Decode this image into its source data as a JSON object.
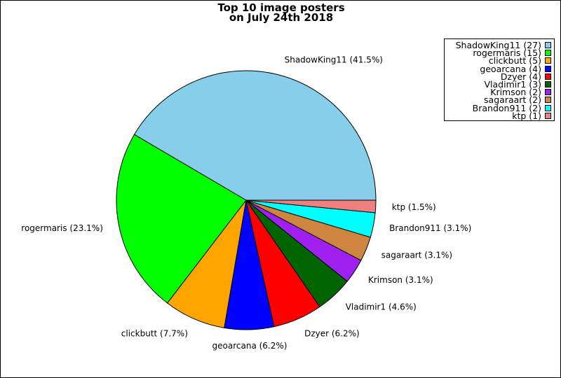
{
  "chart_data": {
    "type": "pie",
    "title_lines": [
      "Top 10 image posters",
      "on July 24th 2018"
    ],
    "slices": [
      {
        "label": "ShadowKing11",
        "value": 27,
        "percent_label": "ShadowKing11 (41.5%)",
        "legend_label": "ShadowKing11 (27)",
        "color": "#87CEEB"
      },
      {
        "label": "rogermaris",
        "value": 15,
        "percent_label": "rogermaris (23.1%)",
        "legend_label": "rogermaris (15)",
        "color": "#00FF00"
      },
      {
        "label": "clickbutt",
        "value": 5,
        "percent_label": "clickbutt (7.7%)",
        "legend_label": "clickbutt (5)",
        "color": "#FFA500"
      },
      {
        "label": "geoarcana",
        "value": 4,
        "percent_label": "geoarcana (6.2%)",
        "legend_label": "geoarcana (4)",
        "color": "#0000FF"
      },
      {
        "label": "Dzyer",
        "value": 4,
        "percent_label": "Dzyer (6.2%)",
        "legend_label": "Dzyer (4)",
        "color": "#FF0000"
      },
      {
        "label": "Vladimir1",
        "value": 3,
        "percent_label": "Vladimir1 (4.6%)",
        "legend_label": "Vladimir1 (3)",
        "color": "#006400"
      },
      {
        "label": "Krimson",
        "value": 2,
        "percent_label": "Krimson (3.1%)",
        "legend_label": "Krimson (2)",
        "color": "#A020F0"
      },
      {
        "label": "sagaraart",
        "value": 2,
        "percent_label": "sagaraart (3.1%)",
        "legend_label": "sagaraart (2)",
        "color": "#CD853F"
      },
      {
        "label": "Brandon911",
        "value": 2,
        "percent_label": "Brandon911 (3.1%)",
        "legend_label": "Brandon911 (2)",
        "color": "#00FFFF"
      },
      {
        "label": "ktp",
        "value": 1,
        "percent_label": "ktp (1.5%)",
        "legend_label": "ktp (1)",
        "color": "#F08080"
      }
    ],
    "legend_position": "top-right"
  }
}
